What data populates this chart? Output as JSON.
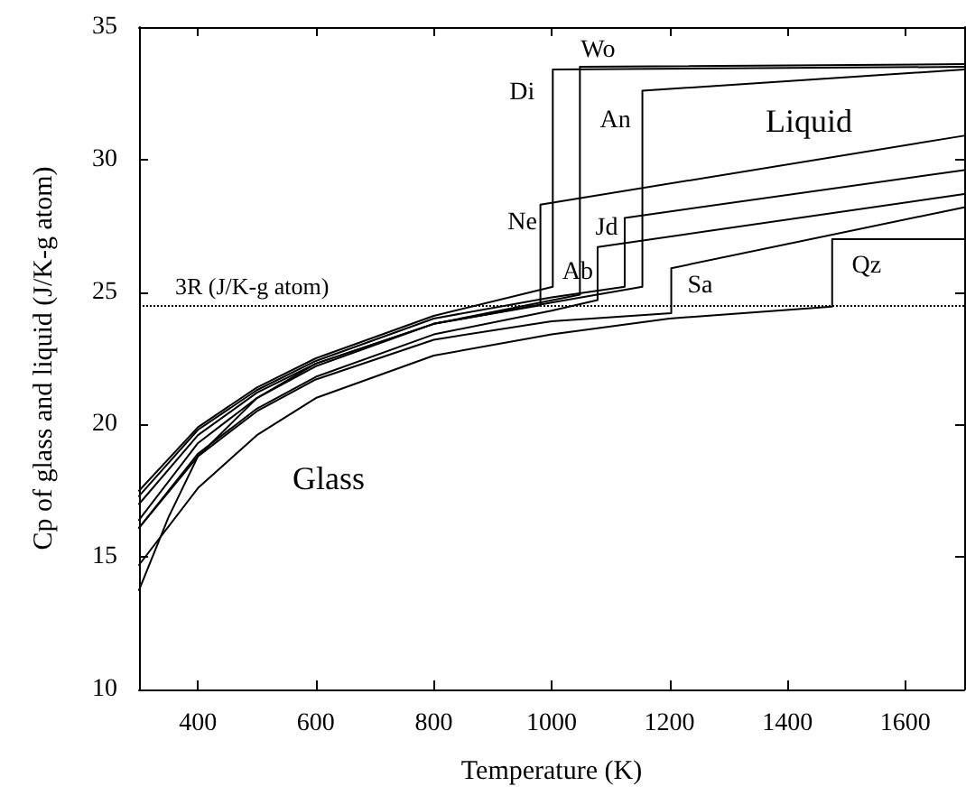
{
  "chart_data": {
    "type": "line",
    "xlabel": "Temperature (K)",
    "ylabel": "Cp of glass and liquid (J/K-g atom)",
    "xlim": [
      300,
      1700
    ],
    "xticks": [
      400,
      600,
      800,
      1000,
      1200,
      1400,
      1600
    ],
    "ylim": [
      10,
      35
    ],
    "yticks": [
      10,
      15,
      20,
      25,
      30,
      35
    ],
    "grid": false,
    "legend": false,
    "marker": "none",
    "line_style": "solid",
    "series": [
      {
        "name": "Di",
        "color": "#000000",
        "x": [
          300,
          400,
          500,
          600,
          800,
          1002,
          1002,
          1700
        ],
        "values": [
          17.5,
          19.9,
          21.4,
          22.5,
          24.1,
          25.2,
          33.4,
          33.5
        ]
      },
      {
        "name": "Wo",
        "color": "#000000",
        "x": [
          300,
          350,
          400,
          500,
          600,
          800,
          1048,
          1048,
          1700
        ],
        "values": [
          13.75,
          16.5,
          18.8,
          21.0,
          22.3,
          23.8,
          24.9,
          33.5,
          33.6
        ]
      },
      {
        "name": "An",
        "color": "#000000",
        "x": [
          300,
          400,
          500,
          600,
          800,
          1000,
          1154,
          1154,
          1700
        ],
        "values": [
          16.4,
          19.3,
          21.0,
          22.2,
          23.8,
          24.6,
          25.2,
          32.6,
          33.4
        ]
      },
      {
        "name": "Ne",
        "color": "#000000",
        "x": [
          300,
          400,
          500,
          600,
          800,
          981,
          981,
          1700
        ],
        "values": [
          17.0,
          19.6,
          21.2,
          22.3,
          23.8,
          24.5,
          28.3,
          30.9
        ]
      },
      {
        "name": "Jd",
        "color": "#000000",
        "x": [
          300,
          400,
          500,
          600,
          800,
          1000,
          1124,
          1124,
          1700
        ],
        "values": [
          17.3,
          19.8,
          21.3,
          22.4,
          24.0,
          24.8,
          25.2,
          27.8,
          29.6
        ]
      },
      {
        "name": "Ab",
        "color": "#000000",
        "x": [
          300,
          400,
          500,
          600,
          800,
          1000,
          1078,
          1078,
          1700
        ],
        "values": [
          16.1,
          18.9,
          20.6,
          21.8,
          23.4,
          24.3,
          24.7,
          26.7,
          28.7
        ]
      },
      {
        "name": "Sa",
        "color": "#000000",
        "x": [
          300,
          400,
          500,
          600,
          800,
          1000,
          1203,
          1203,
          1700
        ],
        "values": [
          16.1,
          18.8,
          20.5,
          21.7,
          23.2,
          23.9,
          24.2,
          25.9,
          28.2
        ]
      },
      {
        "name": "Qz",
        "color": "#000000",
        "x": [
          300,
          400,
          500,
          600,
          800,
          1000,
          1200,
          1476,
          1476,
          1700
        ],
        "values": [
          14.7,
          17.6,
          19.6,
          21.0,
          22.6,
          23.4,
          24.0,
          24.45,
          27.0,
          27.0
        ]
      }
    ],
    "ref_lines": [
      {
        "axis": "y",
        "value": 24.5,
        "label": "3R (J/K-g atom)",
        "color": "#000000",
        "line_style": "dotted"
      }
    ],
    "annotations": [
      "Liquid",
      "Glass"
    ]
  }
}
